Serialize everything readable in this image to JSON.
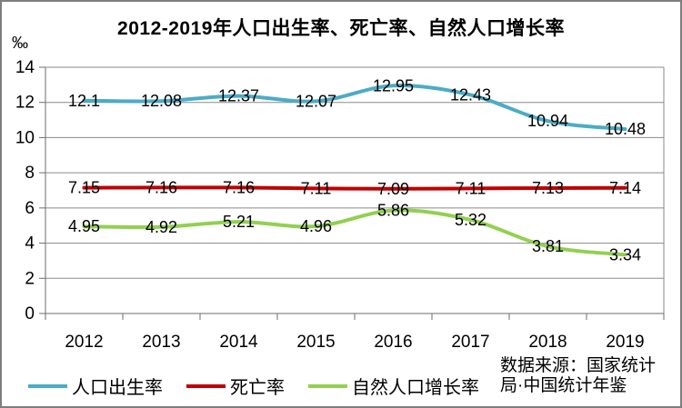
{
  "chart_data": {
    "type": "line",
    "title": "2012-2019年人口出生率、死亡率、自然人口增长率",
    "y_unit": "‰",
    "categories": [
      "2012",
      "2013",
      "2014",
      "2015",
      "2016",
      "2017",
      "2018",
      "2019"
    ],
    "series": [
      {
        "name": "人口出生率",
        "color": "#4BACC6",
        "values": [
          12.1,
          12.08,
          12.37,
          12.07,
          12.95,
          12.43,
          10.94,
          10.48
        ]
      },
      {
        "name": "死亡率",
        "color": "#C00000",
        "values": [
          7.15,
          7.16,
          7.16,
          7.11,
          7.09,
          7.11,
          7.13,
          7.14
        ]
      },
      {
        "name": "自然人口增长率",
        "color": "#92D050",
        "values": [
          4.95,
          4.92,
          5.21,
          4.96,
          5.86,
          5.32,
          3.81,
          3.34
        ]
      }
    ],
    "ylim": [
      0,
      14
    ],
    "y_ticks": [
      0,
      2,
      4,
      6,
      8,
      10,
      12,
      14
    ],
    "grid": true,
    "smooth": true,
    "data_labels": "center",
    "legend_position": "bottom"
  },
  "source": {
    "line1": "数据来源：国家统计",
    "line2": "局·中国统计年鉴"
  },
  "colors": {
    "grid": "#8a8a8a",
    "axis": "#6e6e6e",
    "text": "#000000",
    "background": "#ffffff",
    "border": "#7e7e7e"
  }
}
